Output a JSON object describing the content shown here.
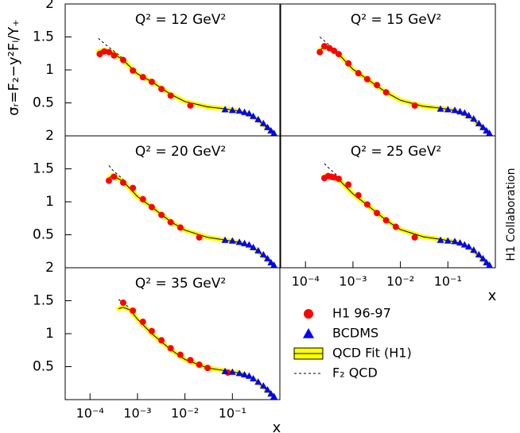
{
  "annotation": "H1 Collaboration",
  "chart_data": [
    {
      "type": "scatter",
      "title": "Q² = 12 GeV²",
      "ylabel": "σᵣ=F₂−y²Fₗ/Y₊",
      "log_x": true,
      "xlim": [
        3e-05,
        1
      ],
      "ylim": [
        0,
        2
      ],
      "yticks": [
        0.5,
        1,
        1.5,
        2
      ],
      "series": [
        {
          "name": "H1 96-97",
          "marker": "circle",
          "color": "#ff0000",
          "x": [
            0.00016,
            0.0002,
            0.00025,
            0.00032,
            0.0005,
            0.0008,
            0.0013,
            0.002,
            0.0032,
            0.005,
            0.013
          ],
          "values": [
            1.24,
            1.28,
            1.27,
            1.22,
            1.15,
            0.99,
            0.89,
            0.82,
            0.71,
            0.61,
            0.46
          ]
        },
        {
          "name": "BCDMS",
          "marker": "triangle",
          "color": "#0000ff",
          "x": [
            0.07,
            0.1,
            0.14,
            0.18,
            0.225,
            0.275,
            0.35,
            0.45,
            0.55,
            0.65,
            0.75
          ],
          "values": [
            0.4,
            0.39,
            0.38,
            0.36,
            0.34,
            0.3,
            0.25,
            0.19,
            0.13,
            0.08,
            0.04
          ]
        },
        {
          "name": "QCD Fit (H1)",
          "marker": "band",
          "color": "#ffff00",
          "x": [
            0.00015,
            0.0002,
            0.0003,
            0.0005,
            0.001,
            0.002,
            0.005,
            0.01,
            0.03,
            0.07,
            0.15,
            0.3,
            0.5,
            0.75
          ],
          "values": [
            1.28,
            1.3,
            1.26,
            1.15,
            0.94,
            0.82,
            0.63,
            0.52,
            0.44,
            0.41,
            0.37,
            0.27,
            0.14,
            0.04
          ]
        },
        {
          "name": "F₂ QCD",
          "marker": "dashed",
          "color": "#000000",
          "x": [
            0.00015,
            0.0002,
            0.0003,
            0.0005
          ],
          "values": [
            1.48,
            1.4,
            1.3,
            1.17
          ]
        }
      ]
    },
    {
      "type": "scatter",
      "title": "Q² = 15 GeV²",
      "log_x": true,
      "xlim": [
        3e-05,
        1
      ],
      "ylim": [
        0,
        2
      ],
      "series": [
        {
          "marker": "circle",
          "color": "#ff0000",
          "x": [
            0.0002,
            0.00025,
            0.00032,
            0.0004,
            0.0005,
            0.0008,
            0.0013,
            0.002,
            0.0032,
            0.005,
            0.02
          ],
          "values": [
            1.27,
            1.36,
            1.33,
            1.29,
            1.24,
            1.1,
            0.95,
            0.86,
            0.77,
            0.66,
            0.46
          ]
        },
        {
          "marker": "triangle",
          "color": "#0000ff",
          "x": [
            0.07,
            0.1,
            0.14,
            0.18,
            0.225,
            0.275,
            0.35,
            0.45,
            0.55,
            0.65,
            0.75
          ],
          "values": [
            0.41,
            0.4,
            0.39,
            0.37,
            0.35,
            0.31,
            0.26,
            0.19,
            0.13,
            0.08,
            0.04
          ]
        },
        {
          "marker": "band",
          "color": "#ffff00",
          "x": [
            0.0002,
            0.00025,
            0.0003,
            0.0005,
            0.001,
            0.002,
            0.005,
            0.01,
            0.03,
            0.07,
            0.15,
            0.3,
            0.5,
            0.75
          ],
          "values": [
            1.3,
            1.35,
            1.34,
            1.24,
            1.01,
            0.86,
            0.66,
            0.54,
            0.45,
            0.42,
            0.38,
            0.28,
            0.14,
            0.04
          ]
        },
        {
          "marker": "dashed",
          "color": "#000000",
          "x": [
            0.0002,
            0.00025,
            0.0003,
            0.0005
          ],
          "values": [
            1.5,
            1.44,
            1.39,
            1.26
          ]
        }
      ]
    },
    {
      "type": "scatter",
      "title": "Q² = 20 GeV²",
      "log_x": true,
      "xlim": [
        3e-05,
        1
      ],
      "ylim": [
        0,
        2
      ],
      "yticks": [
        0.5,
        1,
        1.5,
        2
      ],
      "series": [
        {
          "marker": "circle",
          "color": "#ff0000",
          "x": [
            0.00025,
            0.00032,
            0.0005,
            0.0008,
            0.0013,
            0.002,
            0.0032,
            0.005,
            0.008,
            0.02
          ],
          "values": [
            1.32,
            1.38,
            1.29,
            1.21,
            1.04,
            0.92,
            0.8,
            0.69,
            0.61,
            0.46
          ]
        },
        {
          "marker": "triangle",
          "color": "#0000ff",
          "x": [
            0.07,
            0.1,
            0.14,
            0.18,
            0.225,
            0.275,
            0.35,
            0.45,
            0.55,
            0.65,
            0.75
          ],
          "values": [
            0.42,
            0.41,
            0.39,
            0.37,
            0.35,
            0.31,
            0.26,
            0.2,
            0.14,
            0.08,
            0.04
          ]
        },
        {
          "marker": "band",
          "color": "#ffff00",
          "x": [
            0.00025,
            0.0003,
            0.0005,
            0.001,
            0.002,
            0.005,
            0.01,
            0.03,
            0.07,
            0.15,
            0.3,
            0.5,
            0.75
          ],
          "values": [
            1.36,
            1.4,
            1.31,
            1.08,
            0.92,
            0.7,
            0.57,
            0.46,
            0.42,
            0.38,
            0.28,
            0.15,
            0.04
          ]
        },
        {
          "marker": "dashed",
          "color": "#000000",
          "x": [
            0.00025,
            0.0003,
            0.0005
          ],
          "values": [
            1.55,
            1.48,
            1.34
          ]
        }
      ]
    },
    {
      "type": "scatter",
      "title": "Q² = 25 GeV²",
      "xlabel": "x",
      "log_x": true,
      "xlim": [
        3e-05,
        1
      ],
      "ylim": [
        0,
        2
      ],
      "xticks": [
        {
          "value": 0.0001,
          "label": "10⁻⁴"
        },
        {
          "value": 0.001,
          "label": "10⁻³"
        },
        {
          "value": 0.01,
          "label": "10⁻²"
        },
        {
          "value": 0.1,
          "label": "10⁻¹"
        }
      ],
      "series": [
        {
          "marker": "circle",
          "color": "#ff0000",
          "x": [
            0.00025,
            0.0003,
            0.00035,
            0.0004,
            0.0005,
            0.0008,
            0.0013,
            0.002,
            0.0032,
            0.005,
            0.008,
            0.02
          ],
          "values": [
            1.36,
            1.39,
            1.38,
            1.37,
            1.35,
            1.26,
            1.1,
            0.96,
            0.83,
            0.72,
            0.62,
            0.46
          ]
        },
        {
          "marker": "triangle",
          "color": "#0000ff",
          "x": [
            0.07,
            0.1,
            0.14,
            0.18,
            0.225,
            0.275,
            0.35,
            0.45,
            0.55,
            0.65,
            0.75
          ],
          "values": [
            0.42,
            0.41,
            0.4,
            0.38,
            0.35,
            0.32,
            0.27,
            0.2,
            0.14,
            0.08,
            0.04
          ]
        },
        {
          "marker": "band",
          "color": "#ffff00",
          "x": [
            0.00025,
            0.0003,
            0.0005,
            0.001,
            0.002,
            0.005,
            0.01,
            0.03,
            0.07,
            0.15,
            0.3,
            0.5,
            0.75
          ],
          "values": [
            1.38,
            1.4,
            1.34,
            1.12,
            0.95,
            0.72,
            0.58,
            0.47,
            0.43,
            0.39,
            0.29,
            0.15,
            0.04
          ]
        },
        {
          "marker": "dashed",
          "color": "#000000",
          "x": [
            0.00025,
            0.0003,
            0.0005
          ],
          "values": [
            1.58,
            1.52,
            1.38
          ]
        }
      ]
    },
    {
      "type": "scatter",
      "title": "Q² = 35 GeV²",
      "xlabel": "x",
      "log_x": true,
      "xlim": [
        3e-05,
        1
      ],
      "ylim": [
        0,
        2
      ],
      "yticks": [
        0.5,
        1,
        1.5,
        2
      ],
      "xticks": [
        {
          "value": 0.0001,
          "label": "10⁻⁴"
        },
        {
          "value": 0.001,
          "label": "10⁻³"
        },
        {
          "value": 0.01,
          "label": "10⁻²"
        },
        {
          "value": 0.1,
          "label": "10⁻¹"
        }
      ],
      "series": [
        {
          "marker": "circle",
          "color": "#ff0000",
          "x": [
            0.0005,
            0.0008,
            0.0013,
            0.002,
            0.0032,
            0.005,
            0.008,
            0.013,
            0.02,
            0.03,
            0.08
          ],
          "values": [
            1.47,
            1.35,
            1.18,
            1.04,
            0.9,
            0.78,
            0.68,
            0.6,
            0.53,
            0.48,
            0.41
          ]
        },
        {
          "marker": "triangle",
          "color": "#0000ff",
          "x": [
            0.07,
            0.1,
            0.14,
            0.18,
            0.225,
            0.275,
            0.35,
            0.45,
            0.55,
            0.65,
            0.75
          ],
          "values": [
            0.43,
            0.42,
            0.4,
            0.38,
            0.36,
            0.32,
            0.27,
            0.21,
            0.15,
            0.09,
            0.05
          ]
        },
        {
          "marker": "band",
          "color": "#ffff00",
          "x": [
            0.0004,
            0.0005,
            0.0007,
            0.001,
            0.002,
            0.005,
            0.01,
            0.03,
            0.07,
            0.15,
            0.3,
            0.5,
            0.75
          ],
          "values": [
            1.38,
            1.4,
            1.36,
            1.22,
            1.0,
            0.76,
            0.61,
            0.48,
            0.44,
            0.4,
            0.3,
            0.16,
            0.05
          ]
        },
        {
          "marker": "dashed",
          "color": "#000000",
          "x": [
            0.0004,
            0.0005,
            0.0007
          ],
          "values": [
            1.52,
            1.46,
            1.39
          ]
        }
      ]
    }
  ]
}
